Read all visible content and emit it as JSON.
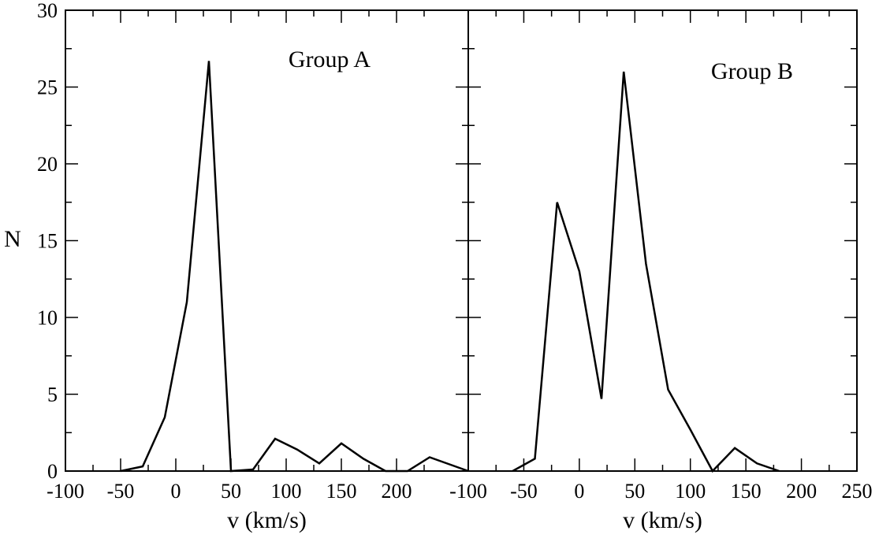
{
  "chart_data": {
    "type": "line",
    "ylabel": "N",
    "ylim": [
      0,
      30
    ],
    "yticks": [
      0,
      5,
      10,
      15,
      20,
      25,
      30
    ],
    "panels": [
      {
        "label": "Group A",
        "xlabel": "v (km/s)",
        "xlim": [
          -100,
          265
        ],
        "xticks": [
          -100,
          -50,
          0,
          50,
          100,
          150,
          200
        ],
        "points": [
          [
            -50,
            0
          ],
          [
            -30,
            0.3
          ],
          [
            -10,
            3.5
          ],
          [
            10,
            11
          ],
          [
            30,
            26.7
          ],
          [
            50,
            0
          ],
          [
            70,
            0.1
          ],
          [
            90,
            2.1
          ],
          [
            110,
            1.4
          ],
          [
            130,
            0.5
          ],
          [
            150,
            1.8
          ],
          [
            170,
            0.8
          ],
          [
            190,
            0
          ],
          [
            210,
            0
          ],
          [
            230,
            0.9
          ],
          [
            265,
            0
          ]
        ]
      },
      {
        "label": "Group B",
        "xlabel": "v (km/s)",
        "xlim": [
          -100,
          250
        ],
        "xticks": [
          -100,
          -50,
          0,
          50,
          100,
          150,
          200,
          250
        ],
        "points": [
          [
            -60,
            0
          ],
          [
            -40,
            0.8
          ],
          [
            -20,
            17.5
          ],
          [
            0,
            13
          ],
          [
            20,
            4.7
          ],
          [
            40,
            26
          ],
          [
            60,
            13.5
          ],
          [
            80,
            5.3
          ],
          [
            100,
            2.7
          ],
          [
            120,
            0
          ],
          [
            140,
            1.5
          ],
          [
            160,
            0.5
          ],
          [
            180,
            0
          ]
        ]
      }
    ]
  }
}
